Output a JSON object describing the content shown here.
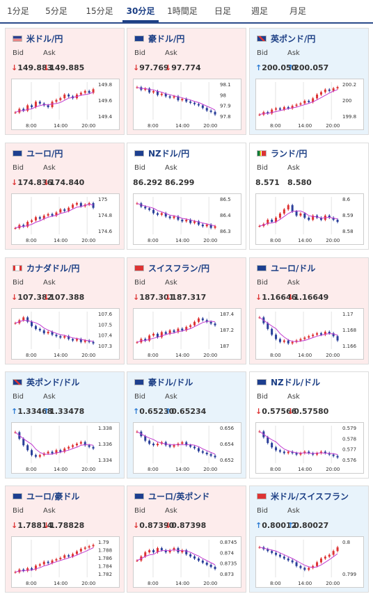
{
  "tabs": [
    {
      "label": "1分足",
      "active": false
    },
    {
      "label": "5分足",
      "active": false
    },
    {
      "label": "15分足",
      "active": false
    },
    {
      "label": "30分足",
      "active": true
    },
    {
      "label": "1時間足",
      "active": false
    },
    {
      "label": "日足",
      "active": false
    },
    {
      "label": "週足",
      "active": false
    },
    {
      "label": "月足",
      "active": false
    }
  ],
  "labels": {
    "bid": "Bid",
    "ask": "Ask"
  },
  "x_ticks": [
    "8:00",
    "14:00",
    "20:00"
  ],
  "cards": [
    {
      "pair": "米ドル/円",
      "flag": "us",
      "state": "down",
      "bid_dir": "down",
      "ask_dir": "down",
      "bid": "149.883",
      "ask": "149.885",
      "y_ticks": [
        "149.8",
        "149.6",
        "149.4"
      ],
      "series": [
        30,
        32,
        31,
        34,
        33,
        36,
        35,
        34,
        33,
        36,
        37,
        38,
        40,
        39,
        38,
        40,
        41,
        42,
        41,
        43
      ]
    },
    {
      "pair": "豪ドル/円",
      "flag": "au",
      "state": "down",
      "bid_dir": "down",
      "ask_dir": "down",
      "bid": "97.769",
      "ask": "97.774",
      "y_ticks": [
        "98.1",
        "98",
        "97.9",
        "97.8"
      ],
      "series": [
        46,
        44,
        45,
        42,
        43,
        40,
        41,
        39,
        38,
        39,
        36,
        37,
        35,
        34,
        33,
        32,
        30,
        28,
        27,
        25
      ]
    },
    {
      "pair": "英ポンド/円",
      "flag": "uk",
      "state": "up",
      "bid_dir": "up",
      "ask_dir": "up",
      "bid": "200.050",
      "ask": "200.057",
      "y_ticks": [
        "200.2",
        "200",
        "199.8"
      ],
      "series": [
        22,
        24,
        23,
        26,
        27,
        26,
        28,
        27,
        29,
        30,
        31,
        33,
        32,
        35,
        38,
        40,
        42,
        41,
        43,
        44
      ]
    },
    {
      "pair": "ユーロ/円",
      "flag": "eu",
      "state": "down",
      "bid_dir": "down",
      "ask_dir": "down",
      "bid": "174.836",
      "ask": "174.840",
      "y_ticks": [
        "175",
        "174.8",
        "174.6"
      ],
      "series": [
        25,
        27,
        26,
        29,
        30,
        32,
        31,
        33,
        34,
        33,
        35,
        37,
        36,
        38,
        40,
        41,
        39,
        40,
        41,
        38
      ]
    },
    {
      "pair": "NZドル/円",
      "flag": "nz",
      "state": "flat",
      "bid_dir": "",
      "ask_dir": "",
      "bid": "86.292",
      "ask": "86.299",
      "y_ticks": [
        "86.5",
        "86.4",
        "86.3"
      ],
      "series": [
        44,
        42,
        41,
        40,
        38,
        37,
        38,
        36,
        35,
        36,
        34,
        33,
        34,
        32,
        33,
        31,
        30,
        31,
        29,
        30
      ]
    },
    {
      "pair": "ランド/円",
      "flag": "za",
      "state": "flat",
      "bid_dir": "",
      "ask_dir": "",
      "bid": "8.571",
      "ask": "8.580",
      "y_ticks": [
        "8.6",
        "8.59",
        "8.58"
      ],
      "series": [
        30,
        31,
        33,
        32,
        34,
        36,
        38,
        40,
        37,
        35,
        36,
        34,
        33,
        35,
        34,
        33,
        35,
        34,
        33,
        32
      ]
    },
    {
      "pair": "カナダドル/円",
      "flag": "ca",
      "state": "down",
      "bid_dir": "down",
      "ask_dir": "down",
      "bid": "107.382",
      "ask": "107.388",
      "y_ticks": [
        "107.6",
        "107.5",
        "107.4",
        "107.3"
      ],
      "series": [
        40,
        42,
        44,
        41,
        38,
        36,
        35,
        33,
        34,
        32,
        31,
        30,
        31,
        29,
        28,
        29,
        27,
        28,
        27,
        26
      ]
    },
    {
      "pair": "スイスフラン/円",
      "flag": "ch",
      "state": "down",
      "bid_dir": "down",
      "ask_dir": "down",
      "bid": "187.301",
      "ask": "187.317",
      "y_ticks": [
        "187.4",
        "187.2",
        "187"
      ],
      "series": [
        26,
        28,
        27,
        30,
        31,
        29,
        32,
        31,
        33,
        32,
        34,
        33,
        35,
        36,
        38,
        40,
        39,
        38,
        37,
        36
      ]
    },
    {
      "pair": "ユーロ/ドル",
      "flag": "eu",
      "state": "down",
      "bid_dir": "down",
      "ask_dir": "down",
      "bid": "1.16646",
      "ask": "1.16649",
      "y_ticks": [
        "1.17",
        "1.168",
        "1.166"
      ],
      "series": [
        46,
        42,
        38,
        34,
        31,
        29,
        30,
        28,
        29,
        30,
        31,
        32,
        33,
        34,
        35,
        34,
        36,
        35,
        33,
        30
      ]
    },
    {
      "pair": "英ポンド/ドル",
      "flag": "uk",
      "state": "up",
      "bid_dir": "up",
      "ask_dir": "up",
      "bid": "1.33468",
      "ask": "1.33478",
      "y_ticks": [
        "1.338",
        "1.336",
        "1.334"
      ],
      "series": [
        44,
        40,
        36,
        33,
        30,
        29,
        30,
        31,
        32,
        31,
        33,
        32,
        34,
        35,
        36,
        37,
        38,
        36,
        35,
        34
      ]
    },
    {
      "pair": "豪ドル/ドル",
      "flag": "au",
      "state": "up",
      "bid_dir": "up",
      "ask_dir": "up",
      "bid": "0.65230",
      "ask": "0.65234",
      "y_ticks": [
        "0.656",
        "0.654",
        "0.652"
      ],
      "series": [
        44,
        41,
        38,
        36,
        35,
        36,
        37,
        35,
        34,
        35,
        36,
        37,
        35,
        34,
        33,
        31,
        30,
        29,
        28,
        27
      ]
    },
    {
      "pair": "NZドル/ドル",
      "flag": "nz",
      "state": "flat",
      "bid_dir": "down",
      "ask_dir": "down",
      "bid": "0.57566",
      "ask": "0.57580",
      "y_ticks": [
        "0.579",
        "0.578",
        "0.577",
        "0.576"
      ],
      "series": [
        46,
        42,
        38,
        35,
        33,
        32,
        31,
        32,
        31,
        30,
        31,
        32,
        31,
        30,
        31,
        32,
        31,
        30,
        29,
        28
      ]
    },
    {
      "pair": "ユーロ/豪ドル",
      "flag": "eu",
      "state": "down",
      "bid_dir": "down",
      "ask_dir": "down",
      "bid": "1.78814",
      "ask": "1.78828",
      "y_ticks": [
        "1.79",
        "1.788",
        "1.786",
        "1.784",
        "1.782"
      ],
      "series": [
        22,
        24,
        23,
        25,
        24,
        27,
        28,
        30,
        29,
        31,
        32,
        33,
        35,
        34,
        36,
        38,
        40,
        41,
        42,
        43
      ]
    },
    {
      "pair": "ユーロ/英ポンド",
      "flag": "eu",
      "state": "down",
      "bid_dir": "down",
      "ask_dir": "down",
      "bid": "0.87390",
      "ask": "0.87398",
      "y_ticks": [
        "0.8745",
        "0.874",
        "0.8735",
        "0.873"
      ],
      "series": [
        36,
        38,
        40,
        41,
        40,
        42,
        41,
        40,
        41,
        42,
        40,
        41,
        39,
        38,
        37,
        36,
        35,
        34,
        33,
        32
      ]
    },
    {
      "pair": "米ドル/スイスフラン",
      "flag": "ch",
      "state": "up",
      "bid_dir": "up",
      "ask_dir": "up",
      "bid": "0.80012",
      "ask": "0.80027",
      "y_ticks": [
        "0.8",
        "0.799"
      ],
      "series": [
        38,
        37,
        36,
        35,
        34,
        33,
        32,
        31,
        30,
        28,
        27,
        26,
        27,
        28,
        30,
        32,
        33,
        34,
        36,
        38
      ]
    }
  ]
}
